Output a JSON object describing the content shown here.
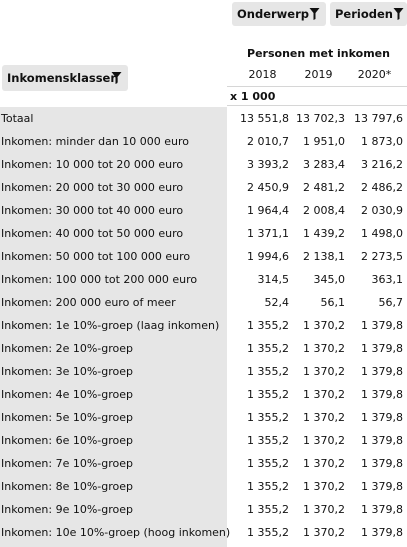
{
  "filters": {
    "onderwerp_label": "Onderwerp",
    "perioden_label": "Perioden",
    "inkomensklassen_label": "Inkomensklassen"
  },
  "icons": {
    "filter": "filter-funnel-icon"
  },
  "table": {
    "column_title": "Personen met inkomen",
    "years": [
      "2018",
      "2019",
      "2020*"
    ],
    "unit": "x 1 000",
    "rows": [
      {
        "label": "Totaal",
        "values": [
          "13 551,8",
          "13 702,3",
          "13 797,6"
        ]
      },
      {
        "label": "Inkomen: minder dan 10 000 euro",
        "values": [
          "2 010,7",
          "1 951,0",
          "1 873,0"
        ]
      },
      {
        "label": "Inkomen: 10 000 tot 20 000 euro",
        "values": [
          "3 393,2",
          "3 283,4",
          "3 216,2"
        ]
      },
      {
        "label": "Inkomen: 20 000 tot 30 000 euro",
        "values": [
          "2 450,9",
          "2 481,2",
          "2 486,2"
        ]
      },
      {
        "label": "Inkomen: 30 000 tot 40 000 euro",
        "values": [
          "1 964,4",
          "2 008,4",
          "2 030,9"
        ]
      },
      {
        "label": "Inkomen: 40 000 tot 50 000 euro",
        "values": [
          "1 371,1",
          "1 439,2",
          "1 498,0"
        ]
      },
      {
        "label": "Inkomen: 50 000 tot 100 000 euro",
        "values": [
          "1 994,6",
          "2 138,1",
          "2 273,5"
        ]
      },
      {
        "label": "Inkomen: 100 000 tot 200 000 euro",
        "values": [
          "314,5",
          "345,0",
          "363,1"
        ]
      },
      {
        "label": "Inkomen: 200 000 euro of meer",
        "values": [
          "52,4",
          "56,1",
          "56,7"
        ]
      },
      {
        "label": "Inkomen: 1e 10%-groep (laag inkomen)",
        "values": [
          "1 355,2",
          "1 370,2",
          "1 379,8"
        ]
      },
      {
        "label": "Inkomen: 2e 10%-groep",
        "values": [
          "1 355,2",
          "1 370,2",
          "1 379,8"
        ]
      },
      {
        "label": "Inkomen: 3e 10%-groep",
        "values": [
          "1 355,2",
          "1 370,2",
          "1 379,8"
        ]
      },
      {
        "label": "Inkomen: 4e 10%-groep",
        "values": [
          "1 355,2",
          "1 370,2",
          "1 379,8"
        ]
      },
      {
        "label": "Inkomen: 5e 10%-groep",
        "values": [
          "1 355,2",
          "1 370,2",
          "1 379,8"
        ]
      },
      {
        "label": "Inkomen: 6e 10%-groep",
        "values": [
          "1 355,2",
          "1 370,2",
          "1 379,8"
        ]
      },
      {
        "label": "Inkomen: 7e 10%-groep",
        "values": [
          "1 355,2",
          "1 370,2",
          "1 379,8"
        ]
      },
      {
        "label": "Inkomen: 8e 10%-groep",
        "values": [
          "1 355,2",
          "1 370,2",
          "1 379,8"
        ]
      },
      {
        "label": "Inkomen: 9e 10%-groep",
        "values": [
          "1 355,2",
          "1 370,2",
          "1 379,8"
        ]
      },
      {
        "label": "Inkomen: 10e 10%-groep (hoog inkomen)",
        "values": [
          "1 355,2",
          "1 370,2",
          "1 379,8"
        ]
      }
    ]
  }
}
